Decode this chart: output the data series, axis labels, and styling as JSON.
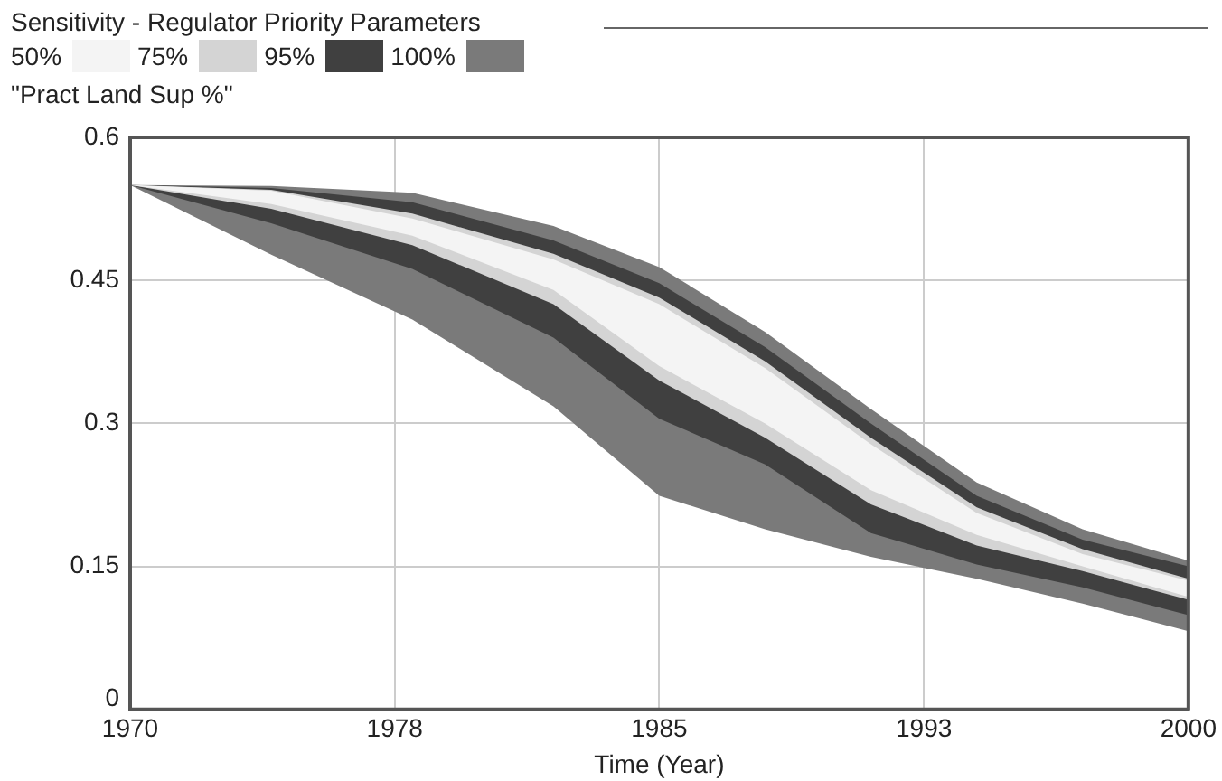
{
  "chart_data": {
    "type": "area",
    "title": "Sensitivity - Regulator Priority Parameters",
    "ylabel": "\"Pract Land Sup %\"",
    "xlabel": "Time (Year)",
    "x": [
      1970,
      1974,
      1978,
      1982,
      1985,
      1988,
      1991,
      1994,
      1997,
      2000
    ],
    "series": [
      {
        "name": "50%",
        "color": "#f4f4f4",
        "values": [
          null,
          null,
          null,
          null,
          null,
          null,
          null,
          null,
          null,
          null
        ],
        "lower": [
          0.55,
          0.53,
          0.497,
          0.44,
          0.36,
          0.3,
          0.23,
          0.183,
          0.15,
          0.118
        ],
        "upper": [
          0.55,
          0.544,
          0.515,
          0.472,
          0.425,
          0.358,
          0.278,
          0.206,
          0.163,
          0.135
        ]
      },
      {
        "name": "75%",
        "color": "#d4d4d4",
        "values": [
          null,
          null,
          null,
          null,
          null,
          null,
          null,
          null,
          null,
          null
        ],
        "lower": [
          0.55,
          0.525,
          0.487,
          0.425,
          0.345,
          0.285,
          0.215,
          0.172,
          0.145,
          0.115
        ],
        "upper": [
          0.55,
          0.545,
          0.52,
          0.478,
          0.432,
          0.365,
          0.285,
          0.212,
          0.168,
          0.137
        ]
      },
      {
        "name": "95%",
        "color": "#404040",
        "values": [
          null,
          null,
          null,
          null,
          null,
          null,
          null,
          null,
          null,
          null
        ],
        "lower": [
          0.55,
          0.51,
          0.462,
          0.39,
          0.305,
          0.257,
          0.185,
          0.152,
          0.128,
          0.099
        ],
        "upper": [
          0.55,
          0.547,
          0.532,
          0.492,
          0.447,
          0.38,
          0.3,
          0.224,
          0.178,
          0.15
        ]
      },
      {
        "name": "100%",
        "color": "#7a7a7a",
        "values": [
          null,
          null,
          null,
          null,
          null,
          null,
          null,
          null,
          null,
          null
        ],
        "lower": [
          0.55,
          0.477,
          0.409,
          0.318,
          0.224,
          0.189,
          0.16,
          0.137,
          0.111,
          0.082
        ],
        "upper": [
          0.55,
          0.549,
          0.542,
          0.507,
          0.464,
          0.396,
          0.315,
          0.238,
          0.189,
          0.156
        ]
      }
    ],
    "xlim": [
      1970,
      2000
    ],
    "xticks": [
      1970,
      {
        "value": 1977.5,
        "label": "1978"
      },
      1985,
      {
        "value": 1992.5,
        "label": "1993"
      },
      2000
    ],
    "ylim": [
      0,
      0.6
    ],
    "yticks": [
      0,
      0.15,
      0.3,
      0.45,
      0.6
    ],
    "grid": true,
    "legend": "top left"
  }
}
